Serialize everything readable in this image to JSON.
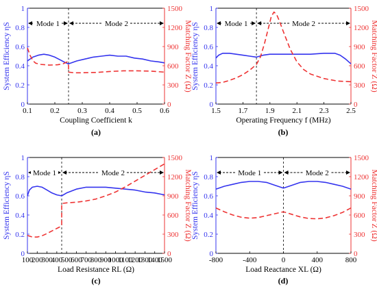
{
  "chart_data": [
    {
      "type": "line",
      "panel": "(a)",
      "xlabel": "Coupling Coefficient k",
      "ylabel_left": "System Efficiency ηS",
      "ylabel_right": "Matching Factor Z (Ω)",
      "xlim": [
        0.1,
        0.6
      ],
      "ylim_left": [
        0,
        1
      ],
      "ylim_right": [
        0,
        1500
      ],
      "x_ticks": [
        "0.1",
        "0.2",
        "0.3",
        "0.4",
        "0.5",
        "0.6"
      ],
      "y_ticks_left": [
        "0",
        "0.2",
        "0.4",
        "0.6",
        "0.8",
        "1"
      ],
      "y_ticks_right": [
        "0",
        "300",
        "600",
        "900",
        "1200",
        "1500"
      ],
      "mode_boundary": 0.25,
      "mode_labels": [
        "Mode 1",
        "Mode 2"
      ],
      "efficiency": {
        "axis": "left",
        "color": "#3333ee",
        "style": "solid",
        "x": [
          0.1,
          0.12,
          0.14,
          0.16,
          0.18,
          0.2,
          0.22,
          0.24,
          0.25,
          0.28,
          0.31,
          0.34,
          0.37,
          0.4,
          0.43,
          0.46,
          0.49,
          0.52,
          0.55,
          0.58,
          0.6
        ],
        "y": [
          0.45,
          0.49,
          0.51,
          0.52,
          0.51,
          0.49,
          0.46,
          0.43,
          0.42,
          0.45,
          0.47,
          0.49,
          0.5,
          0.51,
          0.5,
          0.5,
          0.48,
          0.47,
          0.45,
          0.44,
          0.43
        ]
      },
      "matching_factor": {
        "axis": "right",
        "color": "#ee3333",
        "style": "dashed",
        "x": [
          0.1,
          0.11,
          0.12,
          0.13,
          0.15,
          0.18,
          0.21,
          0.23,
          0.245,
          0.25,
          0.25,
          0.27,
          0.3,
          0.35,
          0.4,
          0.45,
          0.5,
          0.55,
          0.6
        ],
        "y": [
          880,
          760,
          680,
          640,
          620,
          610,
          615,
          630,
          660,
          600,
          500,
          490,
          490,
          495,
          510,
          520,
          520,
          515,
          500
        ]
      }
    },
    {
      "type": "line",
      "panel": "(b)",
      "xlabel": "Operating Frequency f (MHz)",
      "ylabel_left": "System Efficiency ηS",
      "ylabel_right": "Matching Factor Z (Ω)",
      "xlim": [
        1.5,
        2.5
      ],
      "ylim_left": [
        0,
        1
      ],
      "ylim_right": [
        0,
        1500
      ],
      "x_ticks": [
        "1.5",
        "1.7",
        "1.9",
        "2.1",
        "2.3",
        "2.5"
      ],
      "y_ticks_left": [
        "0",
        "0.2",
        "0.4",
        "0.6",
        "0.8",
        "1"
      ],
      "y_ticks_right": [
        "0",
        "300",
        "600",
        "900",
        "1200",
        "1500"
      ],
      "mode_boundary": 1.8,
      "mode_labels": [
        "Mode 1",
        "Mode 2"
      ],
      "efficiency": {
        "axis": "left",
        "color": "#3333ee",
        "style": "solid",
        "x": [
          1.5,
          1.52,
          1.55,
          1.6,
          1.65,
          1.7,
          1.75,
          1.8,
          1.85,
          1.9,
          2.0,
          2.1,
          2.2,
          2.3,
          2.38,
          2.42,
          2.46,
          2.5
        ],
        "y": [
          0.48,
          0.51,
          0.53,
          0.53,
          0.52,
          0.51,
          0.5,
          0.49,
          0.51,
          0.52,
          0.52,
          0.52,
          0.52,
          0.53,
          0.53,
          0.51,
          0.47,
          0.42
        ]
      },
      "matching_factor": {
        "axis": "right",
        "color": "#ee3333",
        "style": "dashed",
        "x": [
          1.5,
          1.55,
          1.6,
          1.65,
          1.7,
          1.75,
          1.8,
          1.83,
          1.86,
          1.89,
          1.91,
          1.93,
          1.95,
          1.97,
          2.0,
          2.05,
          2.1,
          2.15,
          2.2,
          2.3,
          2.4,
          2.5
        ],
        "y": [
          330,
          340,
          370,
          410,
          460,
          530,
          620,
          740,
          950,
          1200,
          1370,
          1440,
          1400,
          1300,
          1130,
          860,
          660,
          540,
          470,
          400,
          360,
          350
        ]
      }
    },
    {
      "type": "line",
      "panel": "(c)",
      "xlabel": "Load Resistance RL (Ω)",
      "ylabel_left": "System Efficiency ηS",
      "ylabel_right": "Matching Factor Z (Ω)",
      "xlim": [
        100,
        1500
      ],
      "ylim_left": [
        0,
        1
      ],
      "ylim_right": [
        0,
        1500
      ],
      "x_ticks": [
        "100",
        "200",
        "300",
        "400",
        "500",
        "600",
        "700",
        "800",
        "900",
        "1000",
        "1100",
        "1200",
        "1300",
        "1400",
        "1500"
      ],
      "y_ticks_left": [
        "0",
        "0.2",
        "0.4",
        "0.6",
        "0.8",
        "1"
      ],
      "y_ticks_right": [
        "0",
        "300",
        "600",
        "900",
        "1200",
        "1500"
      ],
      "mode_boundary": 450,
      "mode_labels": [
        "Mode 1",
        "Mode 2"
      ],
      "efficiency": {
        "axis": "left",
        "color": "#3333ee",
        "style": "solid",
        "x": [
          100,
          120,
          150,
          200,
          250,
          300,
          350,
          400,
          450,
          500,
          600,
          700,
          800,
          900,
          1000,
          1100,
          1200,
          1300,
          1400,
          1500
        ],
        "y": [
          0.6,
          0.66,
          0.69,
          0.7,
          0.69,
          0.66,
          0.63,
          0.61,
          0.6,
          0.63,
          0.67,
          0.69,
          0.69,
          0.69,
          0.68,
          0.67,
          0.66,
          0.64,
          0.63,
          0.61
        ]
      },
      "matching_factor": {
        "axis": "right",
        "color": "#ee3333",
        "style": "dashed",
        "x": [
          100,
          150,
          200,
          250,
          300,
          350,
          400,
          440,
          450,
          450,
          500,
          600,
          700,
          800,
          900,
          1000,
          1100,
          1200,
          1300,
          1400,
          1500
        ],
        "y": [
          280,
          255,
          255,
          275,
          310,
          350,
          390,
          420,
          440,
          780,
          790,
          800,
          820,
          850,
          900,
          960,
          1040,
          1130,
          1220,
          1310,
          1400
        ]
      }
    },
    {
      "type": "line",
      "panel": "(d)",
      "xlabel": "Load Reactance XL (Ω)",
      "ylabel_left": "System Efficiency ηS",
      "ylabel_right": "Matching Factor Z (Ω)",
      "xlim": [
        -800,
        800
      ],
      "ylim_left": [
        0,
        1
      ],
      "ylim_right": [
        0,
        1500
      ],
      "x_ticks": [
        "-800",
        "-400",
        "0",
        "400",
        "800"
      ],
      "y_ticks_left": [
        "0",
        "0.2",
        "0.4",
        "0.6",
        "0.8",
        "1"
      ],
      "y_ticks_right": [
        "0",
        "300",
        "600",
        "900",
        "1200",
        "1500"
      ],
      "mode_boundary": 0,
      "mode_labels": [
        "Mode 1",
        "Mode 2"
      ],
      "efficiency": {
        "axis": "left",
        "color": "#3333ee",
        "style": "solid",
        "x": [
          -800,
          -700,
          -600,
          -500,
          -400,
          -300,
          -200,
          -100,
          0,
          100,
          200,
          300,
          400,
          500,
          600,
          700,
          800
        ],
        "y": [
          0.67,
          0.7,
          0.72,
          0.74,
          0.75,
          0.75,
          0.74,
          0.71,
          0.68,
          0.71,
          0.74,
          0.75,
          0.75,
          0.74,
          0.72,
          0.7,
          0.67
        ]
      },
      "matching_factor": {
        "axis": "right",
        "color": "#ee3333",
        "style": "dashed",
        "x": [
          -800,
          -700,
          -600,
          -500,
          -400,
          -300,
          -200,
          -100,
          0,
          100,
          200,
          300,
          400,
          500,
          600,
          700,
          800
        ],
        "y": [
          710,
          650,
          600,
          565,
          550,
          560,
          590,
          620,
          650,
          610,
          570,
          545,
          540,
          555,
          590,
          640,
          710
        ]
      }
    }
  ]
}
